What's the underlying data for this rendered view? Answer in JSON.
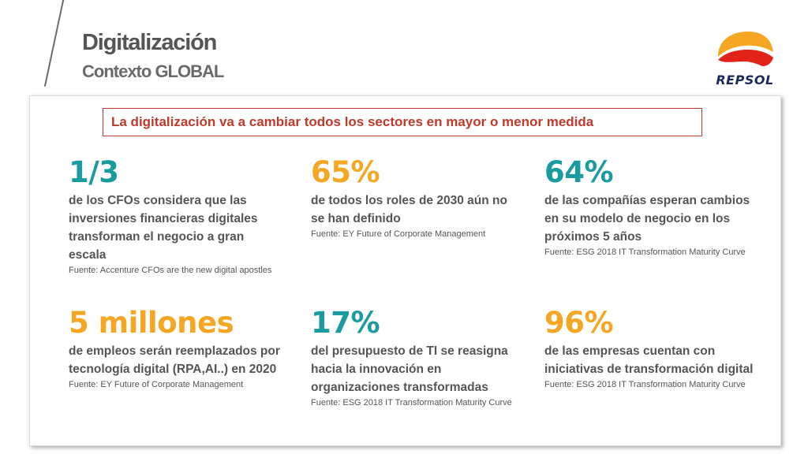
{
  "header": {
    "title": "Digitalización",
    "subtitle": "Contexto GLOBAL"
  },
  "logo": {
    "text": "REPSOL",
    "colors": {
      "orange": "#f5a623",
      "red": "#e2231a",
      "navy": "#1c2a5a"
    }
  },
  "banner": {
    "text": "La digitalización va a cambiar todos los sectores en mayor o menor medida"
  },
  "colors": {
    "teal": "#1a9ba0",
    "orange": "#f5a623",
    "banner_red": "#c0392b",
    "text_gray": "#555555"
  },
  "stats": [
    {
      "value": "1/3",
      "color": "teal",
      "description": "de los CFOs considera que las inversiones financieras digitales transforman el negocio a gran escala",
      "source": "Fuente: Accenture CFOs are the new digital apostles"
    },
    {
      "value": "65%",
      "color": "orange",
      "description": "de todos los roles de 2030 aún no se han definido",
      "source": "Fuente: EY Future of Corporate Management"
    },
    {
      "value": "64%",
      "color": "teal",
      "description": "de las compañías esperan cambios en su modelo de negocio en los próximos 5 años",
      "source": "Fuente: ESG 2018 IT Transformation Maturity Curve"
    },
    {
      "value": "5 millones",
      "color": "orange",
      "description": "de empleos serán reemplazados por tecnología digital (RPA,AI..) en 2020",
      "source": "Fuente: EY Future of Corporate Management"
    },
    {
      "value": "17%",
      "color": "teal",
      "description": "del presupuesto de TI se reasigna hacia la innovación en organizaciones transformadas",
      "source": "Fuente: ESG 2018 IT Transformation Maturity Curve"
    },
    {
      "value": "96%",
      "color": "orange",
      "description": "de las empresas cuentan con iniciativas de transformación digital",
      "source": "Fuente: ESG 2018 IT Transformation Maturity Curve"
    }
  ]
}
